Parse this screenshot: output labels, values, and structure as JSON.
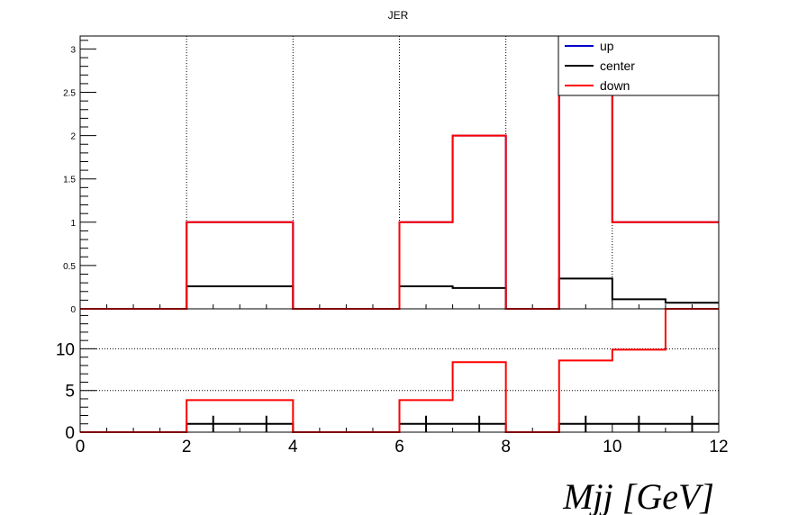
{
  "chart_data": {
    "type": "line",
    "title": "JER",
    "xlabel": "Mjj [GeV]",
    "bin_edges": [
      0,
      1,
      2,
      3,
      4,
      5,
      6,
      7,
      8,
      9,
      10,
      11,
      12
    ],
    "top_panel": {
      "ylim": [
        0,
        3.15
      ],
      "yticks": [
        {
          "v": 0,
          "label": "0"
        },
        {
          "v": 0.5,
          "label": "0.5"
        },
        {
          "v": 1,
          "label": "1"
        },
        {
          "v": 1.5,
          "label": "1.5"
        },
        {
          "v": 2,
          "label": "2"
        },
        {
          "v": 2.5,
          "label": "2.5"
        },
        {
          "v": 3,
          "label": "3"
        }
      ],
      "grid_x": [
        2,
        4,
        6,
        8,
        10
      ],
      "series": [
        {
          "name": "up",
          "color": "#0000cc",
          "values": [
            0,
            0,
            1,
            1,
            0,
            0,
            1,
            2,
            0,
            3,
            1,
            1
          ]
        },
        {
          "name": "center",
          "color": "#000000",
          "values": [
            0,
            0,
            0.26,
            0.26,
            0,
            0,
            0.26,
            0.24,
            0,
            0.35,
            0.11,
            0.07
          ]
        },
        {
          "name": "down",
          "color": "#ff0000",
          "values": [
            0,
            0,
            1,
            1,
            0,
            0,
            1,
            2,
            0,
            3,
            1,
            1
          ]
        }
      ],
      "legend_position": "top-right"
    },
    "bottom_panel": {
      "ylim": [
        0,
        14.8
      ],
      "yticks": [
        {
          "v": 0,
          "label": "0"
        },
        {
          "v": 5,
          "label": "5"
        },
        {
          "v": 10,
          "label": "10"
        }
      ],
      "grid_y": [
        5,
        10
      ],
      "series": [
        {
          "color": "#000000",
          "values": [
            0,
            0,
            1,
            1,
            0,
            0,
            1,
            1,
            0,
            1,
            1,
            1
          ]
        },
        {
          "color": "#ff0000",
          "values": [
            0,
            0,
            3.85,
            3.85,
            0,
            0,
            3.85,
            8.4,
            0,
            8.6,
            9.9,
            14.8
          ]
        }
      ],
      "error_bar_bins": [
        2,
        3,
        6,
        7,
        9,
        10,
        11
      ]
    },
    "xticks": [
      {
        "v": 0,
        "label": "0"
      },
      {
        "v": 2,
        "label": "2"
      },
      {
        "v": 4,
        "label": "4"
      },
      {
        "v": 6,
        "label": "6"
      },
      {
        "v": 8,
        "label": "8"
      },
      {
        "v": 10,
        "label": "10"
      },
      {
        "v": 12,
        "label": "12"
      }
    ]
  }
}
